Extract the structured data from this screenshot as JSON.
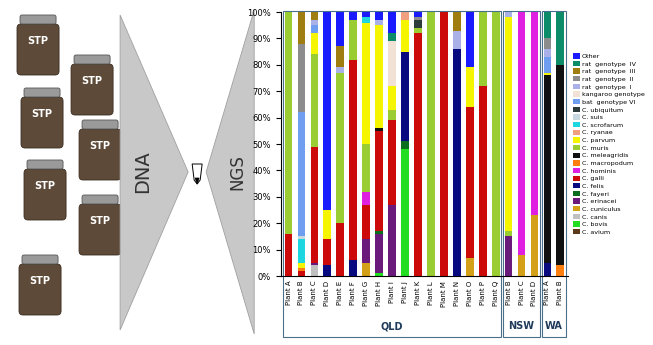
{
  "chart_data": {
    "type": "bar",
    "stacked": true,
    "grid": false,
    "legend": "right",
    "categories": [
      "Plant A",
      "Plant B",
      "Plant C",
      "Plant D",
      "Plant E",
      "Plant F",
      "Plant G",
      "Plant H",
      "Plant I",
      "Plant J",
      "Plant K",
      "Plant L",
      "Plant M",
      "Plant N",
      "Plant O",
      "Plant P",
      "Plant Q",
      "Plant B",
      "Plant C",
      "Plant D",
      "Plant A",
      "Plant B"
    ],
    "groups": [
      "QLD",
      "QLD",
      "QLD",
      "QLD",
      "QLD",
      "QLD",
      "QLD",
      "QLD",
      "QLD",
      "QLD",
      "QLD",
      "QLD",
      "QLD",
      "QLD",
      "QLD",
      "QLD",
      "QLD",
      "NSW",
      "NSW",
      "NSW",
      "WA",
      "WA"
    ],
    "ylim": [
      0,
      100
    ],
    "yticks": [
      {
        "value": 0,
        "label": "0%"
      },
      {
        "value": 10,
        "label": "10%"
      },
      {
        "value": 20,
        "label": "20%"
      },
      {
        "value": 30,
        "label": "30%"
      },
      {
        "value": 40,
        "label": "40%"
      },
      {
        "value": 50,
        "label": "50%"
      },
      {
        "value": 60,
        "label": "60%"
      },
      {
        "value": 70,
        "label": "70%"
      },
      {
        "value": 80,
        "label": "80%"
      },
      {
        "value": 90,
        "label": "90%"
      },
      {
        "value": 100,
        "label": "100%"
      }
    ],
    "series": [
      {
        "name": "Other",
        "color": "#1a1aff",
        "values": [
          0,
          0,
          0,
          75,
          13,
          3,
          2,
          3,
          8,
          0,
          2,
          0,
          0,
          0,
          21,
          0,
          0,
          0,
          0,
          0,
          0,
          0
        ]
      },
      {
        "name": "rat  genotype  IV",
        "color": "#0d8c6a",
        "values": [
          0,
          0,
          0,
          0,
          0,
          0,
          0,
          0,
          3,
          0,
          0,
          0,
          0,
          0,
          0,
          0,
          0,
          0,
          0,
          0,
          10,
          20
        ]
      },
      {
        "name": "rat  genotype  III",
        "color": "#a07d10",
        "values": [
          0,
          12,
          3,
          0,
          8,
          0,
          0,
          0,
          0,
          0,
          0,
          0,
          0,
          7,
          0,
          0,
          0,
          0,
          0,
          0,
          0,
          0
        ]
      },
      {
        "name": "rat  genotype  II",
        "color": "#8c8c8c",
        "values": [
          0,
          26,
          0,
          0,
          0,
          0,
          0,
          0,
          0,
          0,
          1,
          0,
          0,
          0,
          0,
          0,
          0,
          0,
          0,
          0,
          4,
          0
        ]
      },
      {
        "name": "rat  genotype  I",
        "color": "#aab0e8",
        "values": [
          0,
          0,
          2,
          0,
          2,
          0,
          0,
          2,
          0,
          0,
          0,
          0,
          0,
          7,
          0,
          0,
          0,
          2,
          0,
          0,
          3,
          0
        ]
      },
      {
        "name": "kangaroo genotype",
        "color": "#f2e2d6",
        "values": [
          0,
          0,
          0,
          0,
          0,
          0,
          0,
          0,
          17,
          0,
          0,
          0,
          0,
          0,
          0,
          0,
          0,
          0,
          0,
          0,
          0,
          0
        ]
      },
      {
        "name": "bat  genotype VI",
        "color": "#6f9ef0",
        "values": [
          0,
          47,
          3,
          0,
          0,
          0,
          0,
          0,
          0,
          0,
          0,
          0,
          0,
          0,
          0,
          0,
          0,
          0,
          0,
          0,
          6,
          0
        ]
      },
      {
        "name": "C. ubiquitum",
        "color": "#2e3b3b",
        "values": [
          0,
          0,
          0,
          0,
          0,
          0,
          0,
          0,
          0,
          0,
          3,
          0,
          0,
          0,
          0,
          0,
          0,
          0,
          0,
          0,
          0,
          0
        ]
      },
      {
        "name": "C. suis",
        "color": "#c8d8e0",
        "values": [
          0,
          1,
          0,
          0,
          0,
          0,
          0,
          0,
          0,
          0,
          0,
          0,
          0,
          0,
          0,
          0,
          0,
          0,
          0,
          0,
          0,
          0
        ]
      },
      {
        "name": "C. scrofarum",
        "color": "#1ed6e0",
        "values": [
          0,
          9,
          0,
          0,
          0,
          0,
          2,
          0,
          0,
          0,
          0,
          0,
          0,
          0,
          0,
          0,
          0,
          0,
          0,
          0,
          0,
          0
        ]
      },
      {
        "name": "C. ryanae",
        "color": "#f0a080",
        "values": [
          0,
          0,
          0,
          0,
          0,
          0,
          0,
          0,
          0,
          3,
          0,
          0,
          0,
          0,
          0,
          0,
          0,
          0,
          0,
          0,
          0,
          0
        ]
      },
      {
        "name": "C. parvum",
        "color": "#f5f500",
        "values": [
          0,
          2,
          8,
          11,
          0,
          0,
          46,
          39,
          9,
          12,
          0,
          0,
          0,
          0,
          15,
          0,
          0,
          81,
          0,
          0,
          1,
          0
        ]
      },
      {
        "name": "C. muris",
        "color": "#9acd32",
        "values": [
          84,
          0,
          35,
          0,
          57,
          15,
          18,
          0,
          4,
          0,
          2,
          100,
          0,
          0,
          0,
          28,
          100,
          2,
          0,
          0,
          0,
          0
        ]
      },
      {
        "name": "C. meleagridis",
        "color": "#111111",
        "values": [
          0,
          0,
          0,
          0,
          0,
          0,
          0,
          1,
          0,
          0,
          0,
          0,
          0,
          0,
          0,
          0,
          0,
          0,
          0,
          0,
          71,
          76
        ]
      },
      {
        "name": "C. macropodum",
        "color": "#ff7f0e",
        "values": [
          0,
          1,
          0,
          0,
          0,
          0,
          0,
          0,
          0,
          0,
          0,
          0,
          0,
          0,
          0,
          0,
          0,
          0,
          0,
          0,
          0,
          4
        ]
      },
      {
        "name": "C. hominis",
        "color": "#e020e0",
        "values": [
          0,
          0,
          0,
          0,
          0,
          0,
          5,
          0,
          0,
          0,
          0,
          0,
          0,
          0,
          0,
          0,
          0,
          0,
          92,
          77,
          0,
          0
        ]
      },
      {
        "name": "C. galli",
        "color": "#cc0a0a",
        "values": [
          16,
          2,
          44,
          10,
          20,
          76,
          13,
          38,
          32,
          0,
          92,
          0,
          100,
          0,
          57,
          72,
          0,
          0,
          0,
          0,
          0,
          0
        ]
      },
      {
        "name": "C. felis",
        "color": "#0a0a80",
        "values": [
          0,
          0,
          0,
          4,
          0,
          6,
          0,
          0,
          0,
          34,
          0,
          0,
          0,
          86,
          0,
          0,
          0,
          0,
          0,
          0,
          5,
          0
        ]
      },
      {
        "name": "C. fayeri",
        "color": "#0a6e1e",
        "values": [
          0,
          0,
          0,
          0,
          0,
          0,
          0,
          1,
          0,
          3,
          0,
          0,
          0,
          0,
          0,
          0,
          0,
          0,
          0,
          0,
          0,
          0
        ]
      },
      {
        "name": "C. erinacei",
        "color": "#6a1a7a",
        "values": [
          0,
          0,
          1,
          0,
          0,
          0,
          9,
          15,
          27,
          0,
          0,
          0,
          0,
          0,
          0,
          0,
          0,
          15,
          0,
          0,
          0,
          0
        ]
      },
      {
        "name": "C. cuniculus",
        "color": "#d4a017",
        "values": [
          0,
          0,
          0,
          0,
          0,
          0,
          5,
          0,
          0,
          0,
          0,
          0,
          0,
          0,
          7,
          0,
          0,
          0,
          8,
          23,
          0,
          0
        ]
      },
      {
        "name": "C. canis",
        "color": "#c0c0c0",
        "values": [
          0,
          0,
          4,
          0,
          0,
          0,
          0,
          0,
          0,
          0,
          0,
          0,
          0,
          0,
          0,
          0,
          0,
          0,
          0,
          0,
          0,
          0
        ]
      },
      {
        "name": "C. bovis",
        "color": "#22dd22",
        "values": [
          0,
          0,
          0,
          0,
          0,
          0,
          0,
          1,
          0,
          48,
          0,
          0,
          0,
          0,
          0,
          0,
          0,
          0,
          0,
          0,
          0,
          0
        ]
      },
      {
        "name": "C. avium",
        "color": "#5a3a1a",
        "values": [
          0,
          0,
          0,
          0,
          0,
          0,
          0,
          0,
          0,
          0,
          0,
          0,
          0,
          0,
          0,
          0,
          0,
          0,
          0,
          0,
          0,
          0
        ]
      }
    ]
  },
  "diagram": {
    "sample_label": "STP",
    "steps": [
      "DNA",
      "NGS"
    ]
  }
}
